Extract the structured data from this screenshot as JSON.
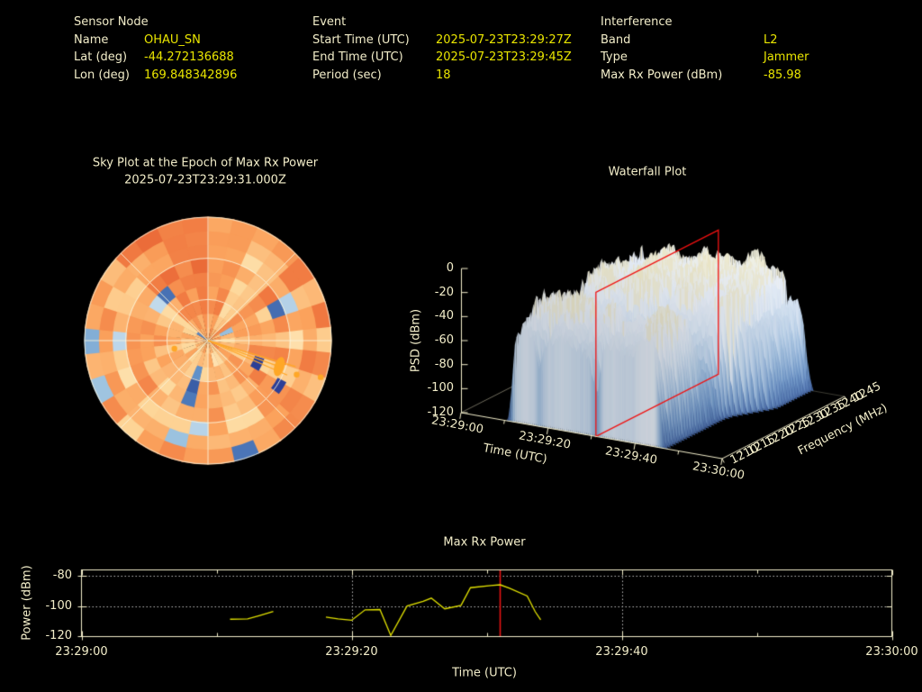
{
  "colors": {
    "background": "#000000",
    "label_text": "#f2edc9",
    "value_text": "#e9e500",
    "axis_cream": "#f3eecb",
    "series_yellow": "#e2e200",
    "epoch_red": "#e81313",
    "waterfall_plane_red": "#f01111",
    "grid_dotted": "#bdbdbd",
    "marker_orange": "#ffa726",
    "navy_cell": "#2c3f97"
  },
  "header": {
    "sections": [
      {
        "title": "Sensor Node",
        "rows": [
          {
            "label": "Name",
            "value": "OHAU_SN"
          },
          {
            "label": "Lat (deg)",
            "value": "-44.272136688"
          },
          {
            "label": "Lon (deg)",
            "value": "169.848342896"
          }
        ]
      },
      {
        "title": "Event",
        "rows": [
          {
            "label": "Start Time (UTC)",
            "value": "2025-07-23T23:29:27Z"
          },
          {
            "label": "End Time (UTC)",
            "value": "2025-07-23T23:29:45Z"
          },
          {
            "label": "Period (sec)",
            "value": "18"
          }
        ]
      },
      {
        "title": "Interference",
        "rows": [
          {
            "label": "Band",
            "value": "L2"
          },
          {
            "label": "Type",
            "value": "Jammer"
          },
          {
            "label": "Max Rx Power (dBm)",
            "value": "-85.98"
          }
        ]
      }
    ]
  },
  "chart_data": [
    {
      "type": "heatmap",
      "subtype": "polar_sky_plot",
      "title": "Sky Plot at the Epoch of Max Rx Power",
      "subtitle": "2025-07-23T23:29:31.000Z",
      "azimuth_bins": 30,
      "elevation_rings": 9,
      "grid_rings_elevation_deg": [
        0,
        30,
        60
      ],
      "grid_spokes_deg": 45,
      "palette": "warm-dominant RdYlBu-like (orange/cream majority, scattered blue patches)",
      "seed": 42,
      "markers": {
        "beam_lines": [
          {
            "az_deg": 106.5,
            "r_frac": 0.74
          },
          {
            "az_deg": 110.0,
            "r_frac": 0.62
          },
          {
            "az_deg": 113.5,
            "r_frac": 0.7
          }
        ],
        "blob": {
          "az_deg": 110,
          "r_frac": 0.615,
          "rx": 5.5,
          "ry": 11,
          "rot_rad": 0.3
        },
        "dots": [
          {
            "az_deg": 256.5,
            "r_frac": 0.28
          },
          {
            "az_deg": 111.0,
            "r_frac": 0.77
          },
          {
            "az_deg": 108.0,
            "r_frac": 0.96
          }
        ],
        "navy_cells": [
          {
            "az0": 108,
            "az1": 121,
            "r0": 0.4,
            "r1": 0.48
          },
          {
            "az0": 118,
            "az1": 127,
            "r0": 0.64,
            "r1": 0.72
          }
        ]
      }
    },
    {
      "type": "surface",
      "name": "waterfall",
      "title": "Waterfall Plot",
      "xlabel": "Time (UTC)",
      "ylabel": "Frequency (MHz)",
      "zlabel": "PSD (dBm)",
      "x_range_s": [
        0,
        60
      ],
      "x_tick_labels": [
        "23:29:00",
        "23:29:20",
        "23:29:40",
        "23:30:00"
      ],
      "y_range_mhz": [
        1210,
        1245
      ],
      "y_tick_labels": [
        "1210",
        "1215",
        "1220",
        "1225",
        "1230",
        "1235",
        "1240",
        "1245"
      ],
      "z_range_dbm": [
        -120,
        0
      ],
      "z_tick_labels": [
        "0",
        "-20",
        "-40",
        "-60",
        "-80",
        "-100",
        "-120"
      ],
      "epoch_plane_s": 31,
      "seed": 7,
      "signal": {
        "t_start_s": 10.5,
        "t_end_front_s": 46.5,
        "t_end_back_s": 52.0,
        "noise_floor_dbm": -120,
        "peak_psd_dbm": -22,
        "peak_height_db": 98,
        "notch_time_s": 31,
        "notch_depth": 0.5,
        "canyon_freq_frac": 0.4,
        "canyon_depth": 0.42
      }
    },
    {
      "type": "line",
      "name": "max_rx_power",
      "title": "Max Rx Power",
      "xlabel": "Time (UTC)",
      "ylabel": "Power (dBm)",
      "x_range_s": [
        0,
        60
      ],
      "x_tick_labels": [
        "23:29:00",
        "23:29:20",
        "23:29:40",
        "23:30:00"
      ],
      "x_tick_s": [
        0,
        20,
        40,
        60
      ],
      "x_minor_tick_s": [
        10,
        30,
        50
      ],
      "ylim": [
        -120.6,
        -75.8
      ],
      "y_tick_labels": [
        "-80",
        "-100",
        "-120"
      ],
      "y_ticks": [
        -80,
        -100,
        -120
      ],
      "grid_y_dotted": [
        -80,
        -100
      ],
      "grid_x_dotted_s": [
        20,
        40
      ],
      "epoch_line_s": 31,
      "max_value_dbm": -85.98,
      "segments": [
        [
          [
            11.0,
            -108.8
          ],
          [
            12.3,
            -108.6
          ],
          [
            13.2,
            -106.3
          ],
          [
            14.2,
            -103.6
          ]
        ],
        [
          [
            18.1,
            -107.4
          ],
          [
            19.0,
            -108.6
          ],
          [
            20.0,
            -109.5
          ],
          [
            21.0,
            -102.6
          ],
          [
            22.1,
            -102.4
          ],
          [
            22.9,
            -119.6
          ],
          [
            24.1,
            -100.1
          ],
          [
            25.3,
            -96.9
          ],
          [
            25.9,
            -94.8
          ],
          [
            26.9,
            -101.9
          ],
          [
            28.1,
            -99.6
          ],
          [
            28.8,
            -87.9
          ],
          [
            30.3,
            -86.5
          ],
          [
            31.0,
            -85.98
          ],
          [
            31.7,
            -88.3
          ],
          [
            33.0,
            -93.4
          ],
          [
            33.6,
            -103.9
          ],
          [
            34.0,
            -109.2
          ]
        ]
      ]
    }
  ]
}
